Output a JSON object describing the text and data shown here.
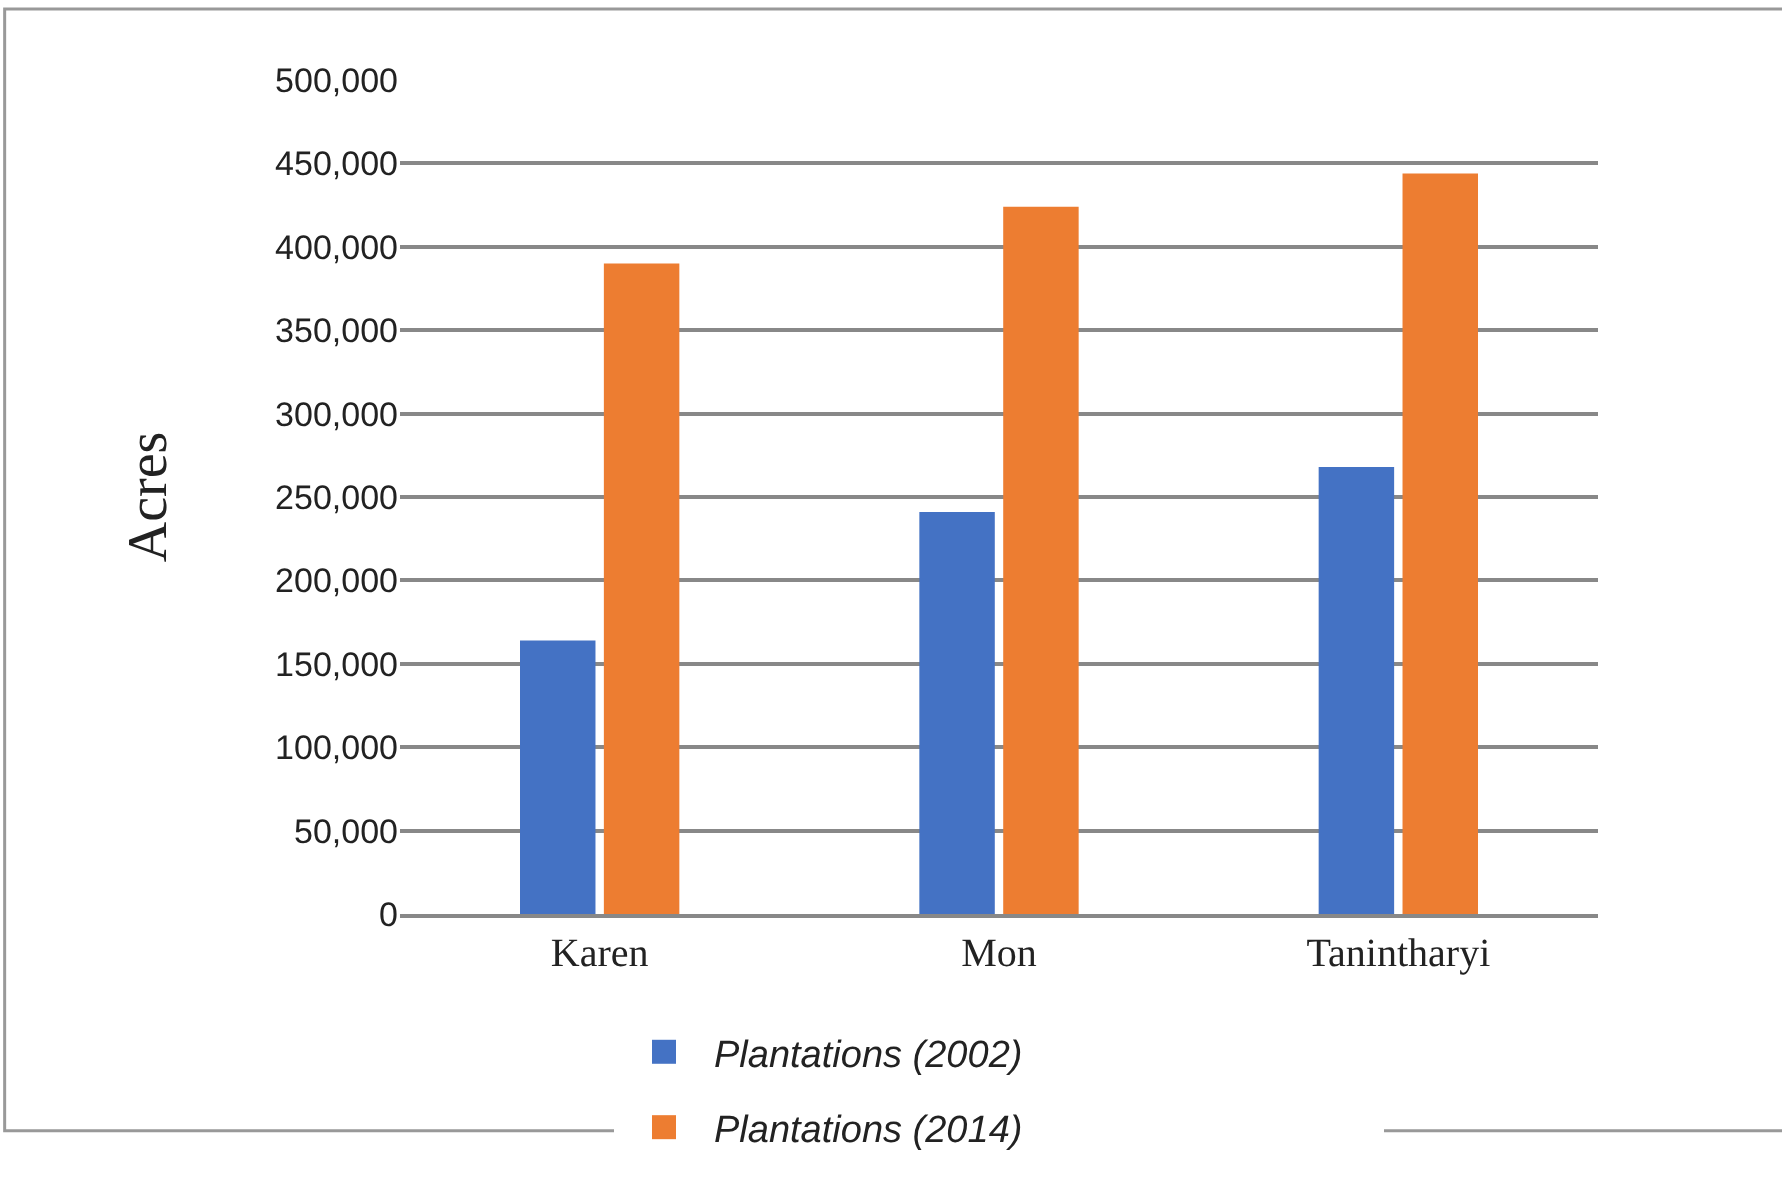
{
  "chart_data": {
    "type": "bar",
    "ylabel": "Acres",
    "categories": [
      "Karen",
      "Mon",
      "Tanintharyi"
    ],
    "series": [
      {
        "name": "Plantations (2002)",
        "color": "#4472c4",
        "values": [
          164000,
          241000,
          268000
        ]
      },
      {
        "name": "Plantations (2014)",
        "color": "#ed7d31",
        "values": [
          390000,
          424000,
          444000
        ]
      }
    ],
    "ylim": [
      0,
      500000
    ],
    "yticks": [
      {
        "value": 0,
        "label": "0"
      },
      {
        "value": 50000,
        "label": "50,000"
      },
      {
        "value": 100000,
        "label": "100,000"
      },
      {
        "value": 150000,
        "label": "150,000"
      },
      {
        "value": 200000,
        "label": "200,000"
      },
      {
        "value": 250000,
        "label": "250,000"
      },
      {
        "value": 300000,
        "label": "300,000"
      },
      {
        "value": 350000,
        "label": "350,000"
      },
      {
        "value": 400000,
        "label": "400,000"
      },
      {
        "value": 450000,
        "label": "450,000"
      },
      {
        "value": 500000,
        "label": "500,000"
      }
    ],
    "grid": "y",
    "legend": "bottom"
  }
}
